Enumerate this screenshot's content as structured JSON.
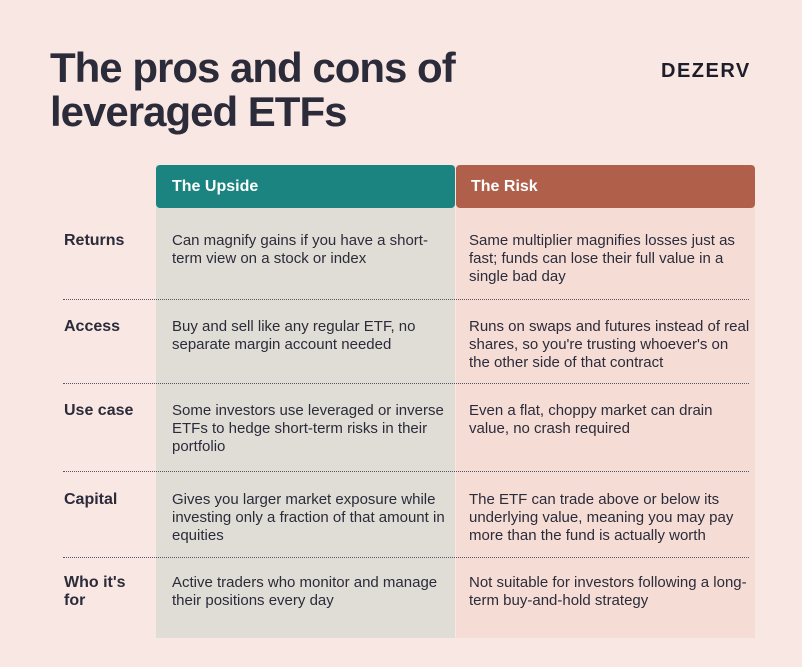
{
  "title_line1": "The pros and cons of",
  "title_line2": "leveraged ETFs",
  "brand": "DEZERV",
  "headers": {
    "upside": "The Upside",
    "risk": "The Risk"
  },
  "colors": {
    "upside_header": "#1b8380",
    "risk_header": "#b0604a",
    "background": "#f9e7e3"
  },
  "rows": [
    {
      "label": "Returns",
      "upside": "Can magnify gains if you have a short-term view on a stock or index",
      "risk": "Same multiplier magnifies losses just as fast; funds can lose their full value in a single bad day"
    },
    {
      "label": "Access",
      "upside": "Buy and sell like any regular ETF, no separate margin account needed",
      "risk": "Runs on swaps and futures instead of real shares, so you're trusting whoever's on the other side of that contract"
    },
    {
      "label": "Use case",
      "upside": "Some investors use leveraged or inverse ETFs to hedge short-term risks in their portfolio",
      "risk": "Even a flat, choppy market can drain value, no crash required"
    },
    {
      "label": "Capital",
      "upside": "Gives you larger market exposure while investing only a fraction of that amount in equities",
      "risk": "The ETF can trade above or below its underlying value, meaning you may pay more than the fund is actually worth"
    },
    {
      "label": "Who it's for",
      "upside": "Active traders who monitor and manage their positions every day",
      "risk": "Not suitable for investors following a long-term buy-and-hold strategy"
    }
  ]
}
